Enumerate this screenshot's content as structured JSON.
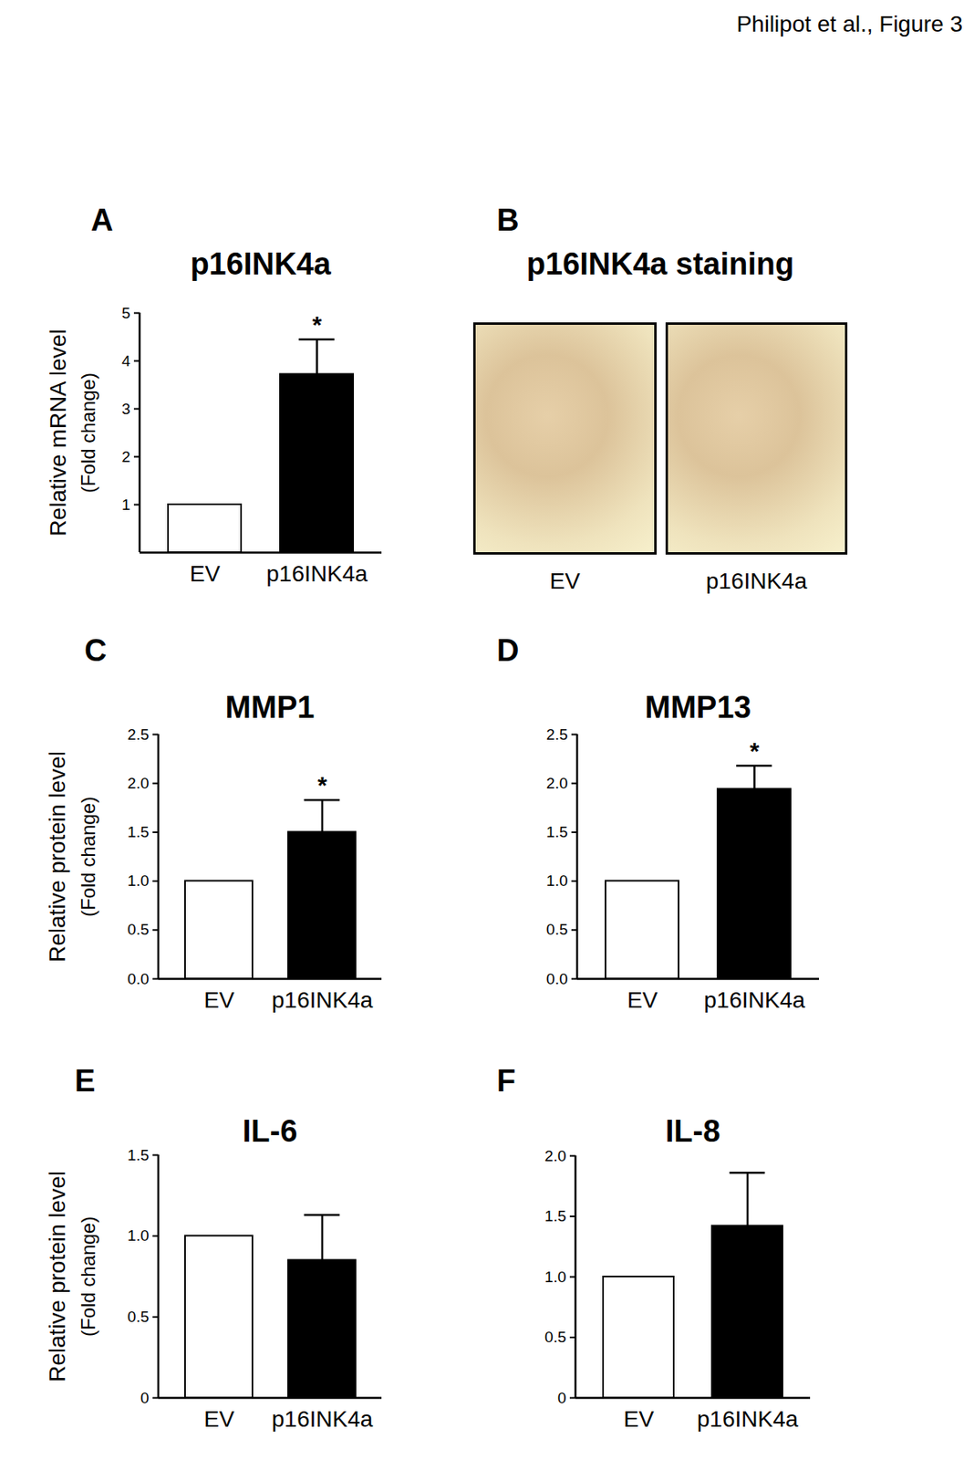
{
  "figure_label": "Philipot et al., Figure 3",
  "chart_data": [
    {
      "panel": "A",
      "type": "bar",
      "title": "p16INK4a",
      "ylabel": [
        "Relative mRNA level",
        "(Fold change)"
      ],
      "categories": [
        "EV",
        "p16INK4a"
      ],
      "values": [
        1,
        3.72
      ],
      "error": [
        null,
        0.73
      ],
      "colors": [
        "#ffffff",
        "#000000"
      ],
      "ylim": [
        0,
        5
      ],
      "yticks": [
        1,
        2,
        3,
        4,
        5
      ],
      "annotations": [
        {
          "category": "p16INK4a",
          "text": "*"
        }
      ]
    },
    {
      "panel": "B",
      "type": "image",
      "title": "p16INK4a staining",
      "categories": [
        "EV",
        "p16INK4a"
      ]
    },
    {
      "panel": "C",
      "type": "bar",
      "title": "MMP1",
      "ylabel": [
        "Relative protein level",
        "(Fold change)"
      ],
      "categories": [
        "EV",
        "p16INK4a"
      ],
      "values": [
        1,
        1.5
      ],
      "error": [
        null,
        0.33
      ],
      "colors": [
        "#ffffff",
        "#000000"
      ],
      "ylim": [
        0,
        2.5
      ],
      "yticks": [
        {
          "value": 0,
          "label": "0.0"
        },
        0.5,
        {
          "value": 1,
          "label": "1.0"
        },
        1.5,
        {
          "value": 2,
          "label": "2.0"
        },
        2.5
      ],
      "annotations": [
        {
          "category": "p16INK4a",
          "text": "*"
        }
      ]
    },
    {
      "panel": "D",
      "type": "bar",
      "title": "MMP13",
      "categories": [
        "EV",
        "p16INK4a"
      ],
      "values": [
        1,
        1.94
      ],
      "error": [
        null,
        0.24
      ],
      "colors": [
        "#ffffff",
        "#000000"
      ],
      "ylim": [
        0,
        2.5
      ],
      "yticks": [
        {
          "value": 0,
          "label": "0.0"
        },
        0.5,
        {
          "value": 1,
          "label": "1.0"
        },
        1.5,
        {
          "value": 2,
          "label": "2.0"
        },
        2.5
      ],
      "annotations": [
        {
          "category": "p16INK4a",
          "text": "*"
        }
      ]
    },
    {
      "panel": "E",
      "type": "bar",
      "title": "IL-6",
      "ylabel": [
        "Relative protein level",
        "(Fold change)"
      ],
      "categories": [
        "EV",
        "p16INK4a"
      ],
      "values": [
        1,
        0.85
      ],
      "error": [
        null,
        0.28
      ],
      "colors": [
        "#ffffff",
        "#000000"
      ],
      "ylim": [
        0,
        1.5
      ],
      "yticks": [
        0,
        0.5,
        {
          "value": 1,
          "label": "1.0"
        },
        1.5
      ]
    },
    {
      "panel": "F",
      "type": "bar",
      "title": "IL-8",
      "categories": [
        "EV",
        "p16INK4a"
      ],
      "values": [
        1,
        1.42
      ],
      "error": [
        null,
        0.44
      ],
      "colors": [
        "#ffffff",
        "#000000"
      ],
      "ylim": [
        0,
        2
      ],
      "yticks": [
        0,
        0.5,
        {
          "value": 1,
          "label": "1.0"
        },
        1.5,
        {
          "value": 2,
          "label": "2.0"
        }
      ]
    }
  ]
}
